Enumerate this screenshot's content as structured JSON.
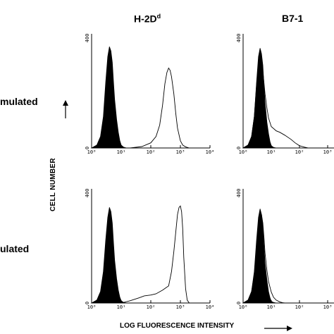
{
  "column_titles": [
    {
      "base": "H-2D",
      "sup": "d"
    },
    {
      "base": "B7-1",
      "sup": ""
    }
  ],
  "row_labels": [
    "mulated",
    "ulated"
  ],
  "ylabel": "CELL NUMBER",
  "xlabel": "LOG FLUORESCENCE INTENSITY",
  "chart_data": [
    {
      "type": "area",
      "panel": "top-left",
      "xscale": "log",
      "xlim": [
        1,
        10000
      ],
      "ylim": [
        0,
        400
      ],
      "xticks": [
        "10⁰",
        "10¹",
        "10²",
        "10³",
        "10⁴"
      ],
      "yticks": [
        "0",
        "400"
      ],
      "series": [
        {
          "style": "filled",
          "x": [
            1,
            1.5,
            2,
            2.5,
            3,
            3.5,
            4,
            4.5,
            5,
            5.5,
            6,
            7,
            8,
            9,
            10,
            12,
            15
          ],
          "y": [
            0,
            10,
            40,
            110,
            230,
            320,
            355,
            340,
            300,
            230,
            170,
            100,
            55,
            25,
            10,
            3,
            0
          ]
        },
        {
          "style": "outline",
          "x": [
            20,
            50,
            100,
            150,
            200,
            250,
            300,
            350,
            400,
            450,
            500,
            600,
            700,
            800,
            1000,
            1200,
            1500,
            2000
          ],
          "y": [
            0,
            5,
            18,
            40,
            80,
            150,
            225,
            265,
            280,
            272,
            250,
            190,
            120,
            70,
            25,
            10,
            4,
            0
          ]
        }
      ]
    },
    {
      "type": "area",
      "panel": "top-right",
      "xscale": "log",
      "xlim": [
        1,
        10000
      ],
      "ylim": [
        0,
        400
      ],
      "xticks": [
        "10⁰",
        "10¹",
        "10²",
        "10³",
        "10⁴"
      ],
      "yticks": [
        "0",
        "400"
      ],
      "series": [
        {
          "style": "filled",
          "x": [
            1,
            1.5,
            2,
            2.5,
            3,
            3.5,
            4,
            4.5,
            5,
            5.5,
            6,
            7,
            8,
            9,
            10,
            12,
            15
          ],
          "y": [
            0,
            10,
            40,
            110,
            230,
            320,
            350,
            330,
            290,
            220,
            160,
            90,
            50,
            22,
            8,
            2,
            0
          ]
        },
        {
          "style": "outline",
          "x": [
            1,
            1.5,
            2,
            2.5,
            3,
            3.5,
            4,
            4.5,
            5,
            6,
            7,
            8,
            10,
            15,
            20,
            30,
            50,
            70,
            100,
            150,
            200
          ],
          "y": [
            0,
            10,
            40,
            110,
            220,
            300,
            330,
            310,
            270,
            190,
            140,
            105,
            75,
            60,
            55,
            45,
            30,
            18,
            8,
            3,
            0
          ]
        }
      ]
    },
    {
      "type": "area",
      "panel": "bottom-left",
      "xscale": "log",
      "xlim": [
        1,
        10000
      ],
      "ylim": [
        0,
        400
      ],
      "xticks": [
        "10⁰",
        "10¹",
        "10²",
        "10³",
        "10⁴"
      ],
      "yticks": [
        "0",
        "400"
      ],
      "series": [
        {
          "style": "filled",
          "x": [
            1,
            1.5,
            2,
            2.5,
            3,
            3.5,
            4,
            4.5,
            5,
            5.5,
            6,
            7,
            8,
            9,
            10,
            12,
            15
          ],
          "y": [
            0,
            10,
            40,
            110,
            220,
            300,
            335,
            320,
            280,
            210,
            150,
            85,
            45,
            20,
            8,
            2,
            0
          ]
        },
        {
          "style": "outline",
          "x": [
            10,
            20,
            40,
            60,
            100,
            150,
            250,
            400,
            500,
            600,
            700,
            800,
            900,
            1000,
            1100,
            1200,
            1300,
            1500,
            1700,
            2000
          ],
          "y": [
            0,
            8,
            18,
            25,
            28,
            32,
            45,
            60,
            110,
            180,
            250,
            310,
            335,
            340,
            320,
            260,
            160,
            50,
            10,
            0
          ]
        }
      ]
    },
    {
      "type": "area",
      "panel": "bottom-right",
      "xscale": "log",
      "xlim": [
        1,
        10000
      ],
      "ylim": [
        0,
        400
      ],
      "xticks": [
        "10⁰",
        "10¹",
        "10²",
        "10³",
        "10⁴"
      ],
      "yticks": [
        "0",
        "400"
      ],
      "series": [
        {
          "style": "filled",
          "x": [
            1,
            1.5,
            2,
            2.5,
            3,
            3.5,
            4,
            4.5,
            5,
            5.5,
            6,
            7,
            8,
            9,
            10,
            12,
            15
          ],
          "y": [
            0,
            10,
            40,
            110,
            220,
            300,
            330,
            310,
            270,
            200,
            140,
            80,
            40,
            18,
            6,
            2,
            0
          ]
        },
        {
          "style": "outline",
          "x": [
            1,
            1.5,
            2,
            2.5,
            3,
            3.5,
            4,
            4.5,
            5,
            5.5,
            6,
            7,
            8,
            10,
            12,
            15,
            20,
            25,
            30
          ],
          "y": [
            0,
            10,
            40,
            100,
            200,
            280,
            320,
            310,
            280,
            230,
            175,
            115,
            75,
            38,
            20,
            10,
            4,
            1,
            0
          ]
        }
      ]
    }
  ]
}
